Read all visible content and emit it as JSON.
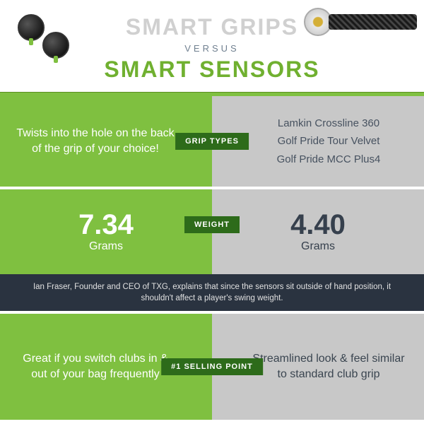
{
  "header": {
    "title1": "SMART GRIPS",
    "versus": "VERSUS",
    "title2": "SMART SENSORS"
  },
  "colors": {
    "green_bg": "#7fc040",
    "gray_bg": "#c8c8c8",
    "dark_green": "#2d6b1a",
    "dark_blue": "#2a3340",
    "title_gray": "#d0d0d0",
    "slate": "#708090",
    "text_dark": "#3a4550"
  },
  "rows": {
    "grip": {
      "badge": "GRIP TYPES",
      "left": "Twists into the hole on the back of the grip of your choice!",
      "right_items": [
        "Lamkin Crossline 360",
        "Golf Pride Tour Velvet",
        "Golf Pride MCC Plus4"
      ]
    },
    "weight": {
      "badge": "WEIGHT",
      "left_value": "7.34",
      "left_unit": "Grams",
      "right_value": "4.40",
      "right_unit": "Grams",
      "quote": "Ian Fraser, Founder and CEO of TXG, explains that since the sensors sit outside of hand position, it shouldn't affect a player's swing weight."
    },
    "selling": {
      "badge": "#1 SELLING POINT",
      "left": "Great if you switch clubs in & out of your bag frequently",
      "right": "Streamlined look & feel similar to standard club grip"
    }
  }
}
